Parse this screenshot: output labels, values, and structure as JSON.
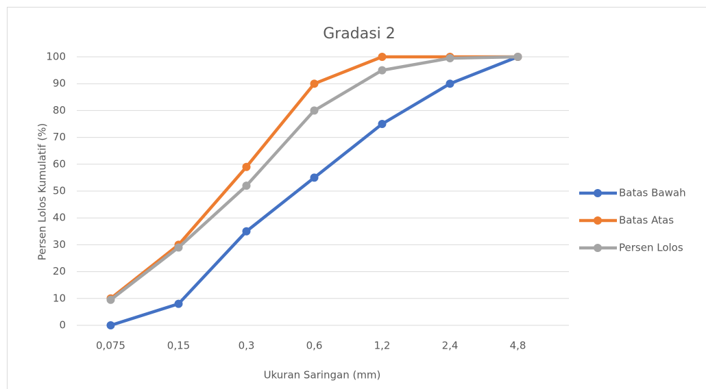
{
  "chart_data": {
    "type": "line",
    "title": "Gradasi 2",
    "x_label": "Ukuran Saringan (mm)",
    "y_label": "Persen Lolos Kumulatif (%)",
    "categories": [
      "0,075",
      "0,15",
      "0,3",
      "0,6",
      "1,2",
      "2,4",
      "4,8"
    ],
    "series": [
      {
        "name": "Batas Bawah",
        "color": "#4472c4",
        "values": [
          0,
          8,
          35,
          55,
          75,
          90,
          100
        ]
      },
      {
        "name": "Batas Atas",
        "color": "#ed7d31",
        "values": [
          10,
          30,
          59,
          90,
          100,
          100,
          100
        ]
      },
      {
        "name": "Persen Lolos",
        "color": "#a5a5a5",
        "values": [
          9.5,
          29,
          52,
          80,
          95,
          99.5,
          100
        ]
      }
    ],
    "ylim": [
      0,
      100
    ],
    "yticks": [
      0,
      10,
      20,
      30,
      40,
      50,
      60,
      70,
      80,
      90,
      100
    ],
    "grid": true,
    "legend": "right"
  }
}
